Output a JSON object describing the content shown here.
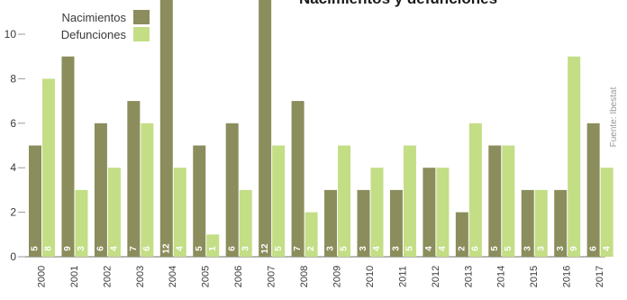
{
  "chart_data": {
    "type": "bar",
    "title": "Nacimientos y defunciones",
    "source": "Fuente: Ibestat",
    "categories": [
      "2000",
      "2001",
      "2002",
      "2003",
      "2004",
      "2005",
      "2006",
      "2007",
      "2008",
      "2009",
      "2010",
      "2011",
      "2012",
      "2013",
      "2014",
      "2015",
      "2016",
      "2017"
    ],
    "series": [
      {
        "name": "Nacimientos",
        "color": "#8b8d5c",
        "values": [
          5,
          9,
          6,
          7,
          12,
          5,
          6,
          12,
          7,
          3,
          3,
          3,
          4,
          2,
          5,
          3,
          3,
          6
        ]
      },
      {
        "name": "Defunciones",
        "color": "#c3de85",
        "values": [
          8,
          3,
          4,
          6,
          4,
          1,
          3,
          5,
          2,
          5,
          4,
          5,
          4,
          6,
          5,
          3,
          9,
          4
        ]
      }
    ],
    "yticks": [
      0,
      2,
      4,
      6,
      8,
      10
    ],
    "ylim": [
      0,
      12
    ],
    "legend_position": "top-left",
    "grid": false
  }
}
